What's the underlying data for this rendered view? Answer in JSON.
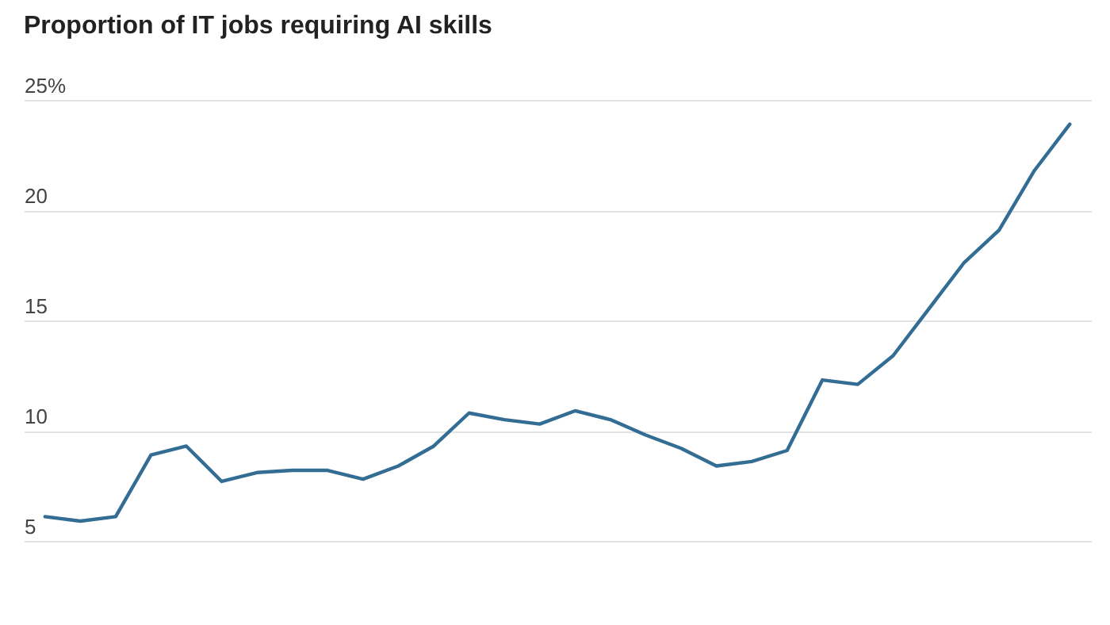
{
  "chart_data": {
    "type": "line",
    "title": "Proportion of IT jobs requiring AI skills",
    "categories": [
      null,
      null,
      null,
      null,
      null,
      null,
      null,
      null,
      null,
      null,
      null,
      null,
      null,
      null,
      null,
      null,
      null,
      null,
      null,
      null,
      null,
      null,
      null,
      null,
      null,
      null,
      null,
      null,
      null,
      null
    ],
    "series": [
      {
        "color": "#336d94",
        "values": [
          6.1,
          5.9,
          6.1,
          8.9,
          9.3,
          7.7,
          8.1,
          8.2,
          8.2,
          7.8,
          8.4,
          9.3,
          10.8,
          10.5,
          10.3,
          10.9,
          10.5,
          9.8,
          9.2,
          8.4,
          8.6,
          9.1,
          12.3,
          12.1,
          13.4,
          15.5,
          17.6,
          19.1,
          21.8,
          23.9
        ]
      }
    ],
    "ylim": [
      5,
      25
    ],
    "yticks": [
      5,
      10,
      15,
      20,
      {
        "value": 25,
        "label": "25%"
      }
    ],
    "grid": "y",
    "tick_labels": "y"
  }
}
